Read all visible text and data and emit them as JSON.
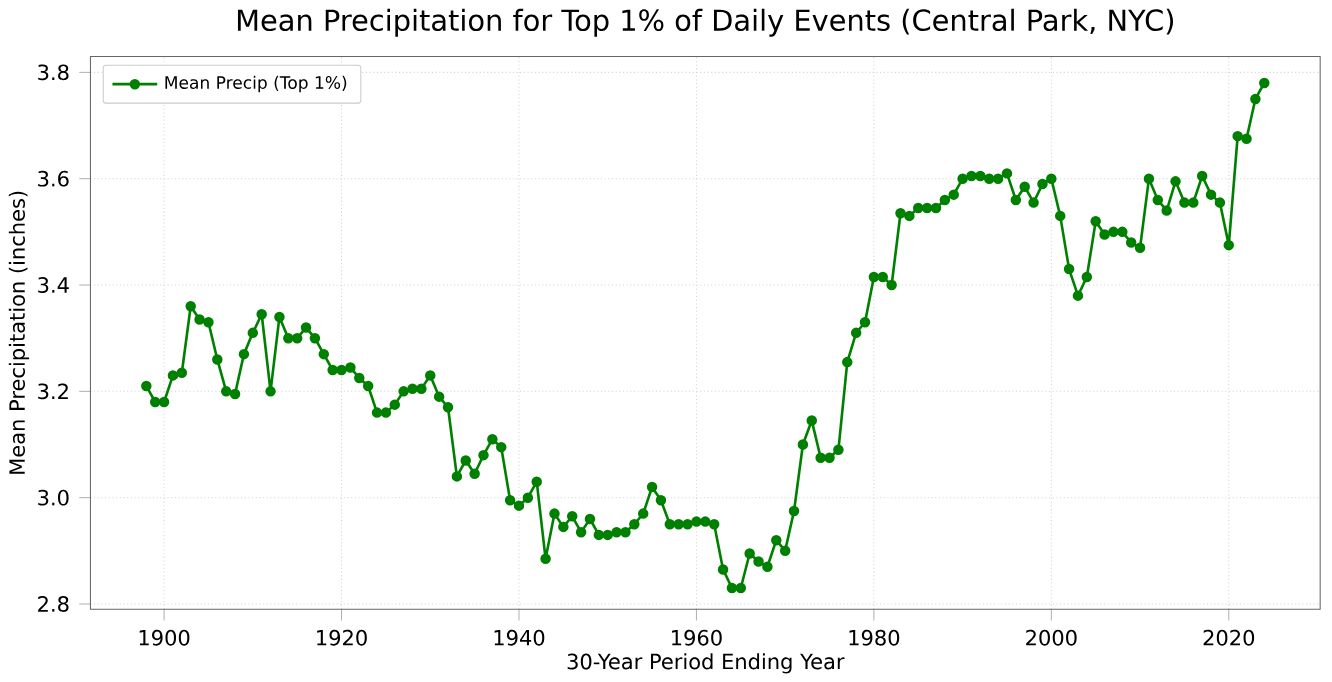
{
  "chart_data": {
    "type": "line",
    "title": "Mean Precipitation for Top 1% of Daily Events (Central Park, NYC)",
    "xlabel": "30-Year Period Ending Year",
    "ylabel": "Mean Precipitation (inches)",
    "x": [
      1898,
      1899,
      1900,
      1901,
      1902,
      1903,
      1904,
      1905,
      1906,
      1907,
      1908,
      1909,
      1910,
      1911,
      1912,
      1913,
      1914,
      1915,
      1916,
      1917,
      1918,
      1919,
      1920,
      1921,
      1922,
      1923,
      1924,
      1925,
      1926,
      1927,
      1928,
      1929,
      1930,
      1931,
      1932,
      1933,
      1934,
      1935,
      1936,
      1937,
      1938,
      1939,
      1940,
      1941,
      1942,
      1943,
      1944,
      1945,
      1946,
      1947,
      1948,
      1949,
      1950,
      1951,
      1952,
      1953,
      1954,
      1955,
      1956,
      1957,
      1958,
      1959,
      1960,
      1961,
      1962,
      1963,
      1964,
      1965,
      1966,
      1967,
      1968,
      1969,
      1970,
      1971,
      1972,
      1973,
      1974,
      1975,
      1976,
      1977,
      1978,
      1979,
      1980,
      1981,
      1982,
      1983,
      1984,
      1985,
      1986,
      1987,
      1988,
      1989,
      1990,
      1991,
      1992,
      1993,
      1994,
      1995,
      1996,
      1997,
      1998,
      1999,
      2000,
      2001,
      2002,
      2003,
      2004,
      2005,
      2006,
      2007,
      2008,
      2009,
      2010,
      2011,
      2012,
      2013,
      2014,
      2015,
      2016,
      2017,
      2018,
      2019,
      2020,
      2021,
      2022,
      2023,
      2024
    ],
    "series": [
      {
        "name": "Mean Precip (Top 1%)",
        "color": "#008000",
        "values": [
          3.21,
          3.18,
          3.18,
          3.23,
          3.235,
          3.36,
          3.335,
          3.33,
          3.26,
          3.2,
          3.195,
          3.27,
          3.31,
          3.345,
          3.2,
          3.34,
          3.3,
          3.3,
          3.32,
          3.3,
          3.27,
          3.24,
          3.24,
          3.245,
          3.225,
          3.21,
          3.16,
          3.16,
          3.175,
          3.2,
          3.205,
          3.205,
          3.23,
          3.19,
          3.17,
          3.04,
          3.07,
          3.045,
          3.08,
          3.11,
          3.095,
          2.995,
          2.985,
          3.0,
          3.03,
          2.885,
          2.97,
          2.945,
          2.965,
          2.935,
          2.96,
          2.93,
          2.93,
          2.935,
          2.935,
          2.95,
          2.97,
          3.02,
          2.995,
          2.95,
          2.95,
          2.95,
          2.955,
          2.955,
          2.95,
          2.865,
          2.83,
          2.83,
          2.895,
          2.88,
          2.87,
          2.92,
          2.9,
          2.975,
          3.1,
          3.145,
          3.075,
          3.075,
          3.09,
          3.255,
          3.31,
          3.33,
          3.415,
          3.415,
          3.4,
          3.535,
          3.53,
          3.545,
          3.545,
          3.545,
          3.56,
          3.57,
          3.6,
          3.605,
          3.605,
          3.6,
          3.6,
          3.61,
          3.56,
          3.585,
          3.555,
          3.59,
          3.6,
          3.53,
          3.43,
          3.38,
          3.415,
          3.52,
          3.495,
          3.5,
          3.5,
          3.48,
          3.47,
          3.6,
          3.56,
          3.54,
          3.595,
          3.555,
          3.555,
          3.605,
          3.57,
          3.555,
          3.475,
          3.68,
          3.675,
          3.75,
          3.78
        ]
      }
    ],
    "xlim": [
      1891.7,
      2030.3
    ],
    "ylim": [
      2.79,
      3.83
    ],
    "xticks": [
      1900,
      1920,
      1940,
      1960,
      1980,
      2000,
      2020
    ],
    "yticks": [
      2.8,
      {
        "value": 3.0,
        "label": "3.0"
      },
      3.2,
      3.4,
      3.6,
      3.8
    ],
    "grid": true,
    "legend": "top left",
    "marker": "circle",
    "line_style": "solid"
  }
}
